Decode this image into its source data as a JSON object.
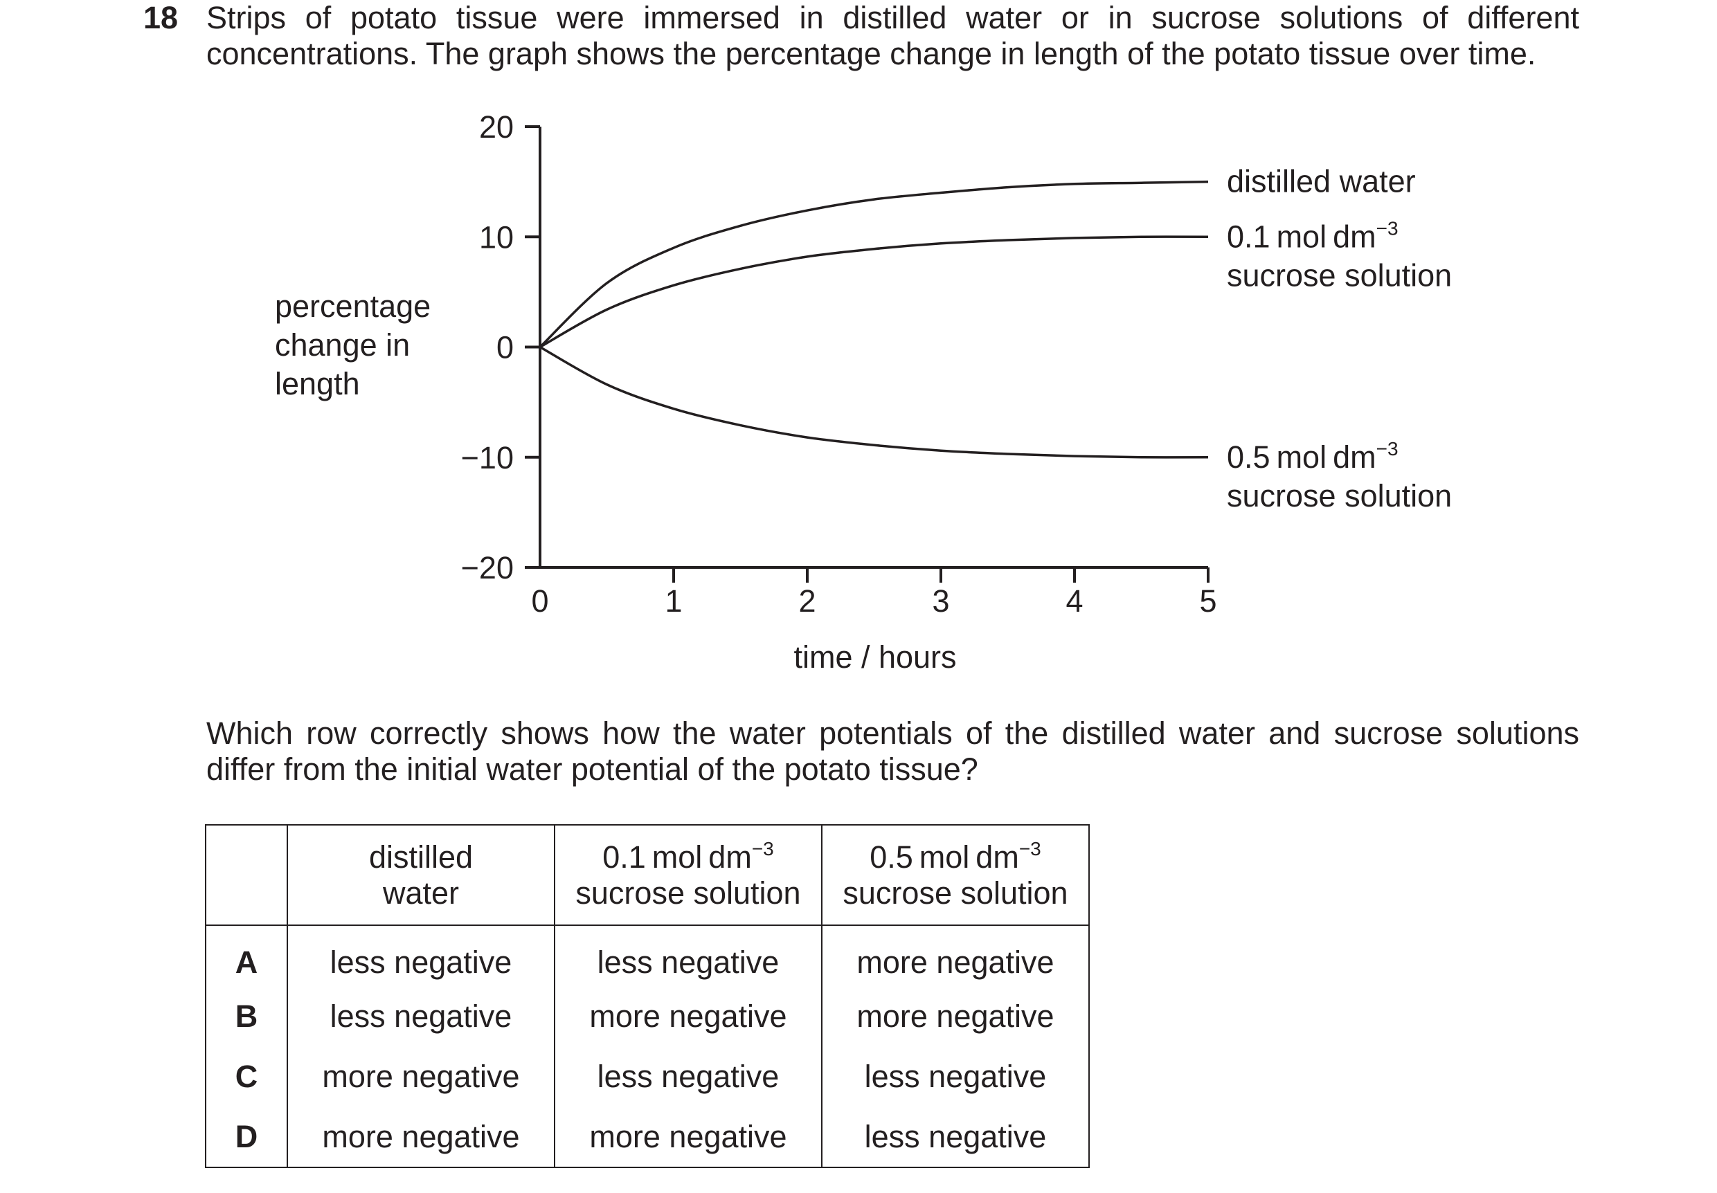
{
  "question_number": "18",
  "intro": {
    "line1": "Strips of potato tissue were immersed in distilled water or in sucrose solutions of different",
    "line2": "concentrations. The graph shows the percentage change in length of the potato tissue over time."
  },
  "chart_data": {
    "type": "line",
    "xlabel": "time / hours",
    "ylabel_lines": [
      "percentage",
      "change in",
      "length"
    ],
    "xlim": [
      0,
      5
    ],
    "ylim": [
      -20,
      20
    ],
    "x_ticks": [
      "0",
      "1",
      "2",
      "3",
      "4",
      "5"
    ],
    "y_ticks": [
      "20",
      "10",
      "0",
      "−10",
      "−20"
    ],
    "grid": false,
    "series": [
      {
        "name": "distilled water",
        "label_line1": "distilled water",
        "label_line2": "",
        "x": [
          0,
          0.5,
          1,
          1.5,
          2,
          2.5,
          3,
          3.5,
          4,
          4.5,
          5
        ],
        "y": [
          0,
          5.8,
          9.0,
          11.0,
          12.4,
          13.4,
          14.0,
          14.5,
          14.8,
          14.9,
          15
        ]
      },
      {
        "name": "0.1 mol dm−3 sucrose solution",
        "label_line1": "0.1 mol dm",
        "label_sup": "−3",
        "label_line2": "sucrose solution",
        "x": [
          0,
          0.5,
          1,
          1.5,
          2,
          2.5,
          3,
          3.5,
          4,
          4.5,
          5
        ],
        "y": [
          0,
          3.4,
          5.6,
          7.1,
          8.2,
          8.9,
          9.4,
          9.7,
          9.9,
          10.0,
          10
        ]
      },
      {
        "name": "0.5 mol dm−3 sucrose solution",
        "label_line1": "0.5 mol dm",
        "label_sup": "−3",
        "label_line2": "sucrose solution",
        "x": [
          0,
          0.5,
          1,
          1.5,
          2,
          2.5,
          3,
          3.5,
          4,
          4.5,
          5
        ],
        "y": [
          0,
          -3.4,
          -5.6,
          -7.1,
          -8.2,
          -8.9,
          -9.4,
          -9.7,
          -9.9,
          -10.0,
          -10
        ]
      }
    ]
  },
  "question": {
    "line1": "Which row correctly shows how the water potentials of the distilled water and sucrose solutions",
    "line2": "differ from the initial water potential of the potato tissue?"
  },
  "table": {
    "headers": [
      {
        "line1": "distilled",
        "line2": "water"
      },
      {
        "line1": "0.1 mol dm",
        "sup": "−3",
        "line2": "sucrose solution"
      },
      {
        "line1": "0.5 mol dm",
        "sup": "−3",
        "line2": "sucrose solution"
      }
    ],
    "rows": [
      {
        "letter": "A",
        "cells": [
          "less negative",
          "less negative",
          "more negative"
        ]
      },
      {
        "letter": "B",
        "cells": [
          "less negative",
          "more negative",
          "more negative"
        ]
      },
      {
        "letter": "C",
        "cells": [
          "more negative",
          "less negative",
          "less negative"
        ]
      },
      {
        "letter": "D",
        "cells": [
          "more negative",
          "more negative",
          "less negative"
        ]
      }
    ]
  }
}
